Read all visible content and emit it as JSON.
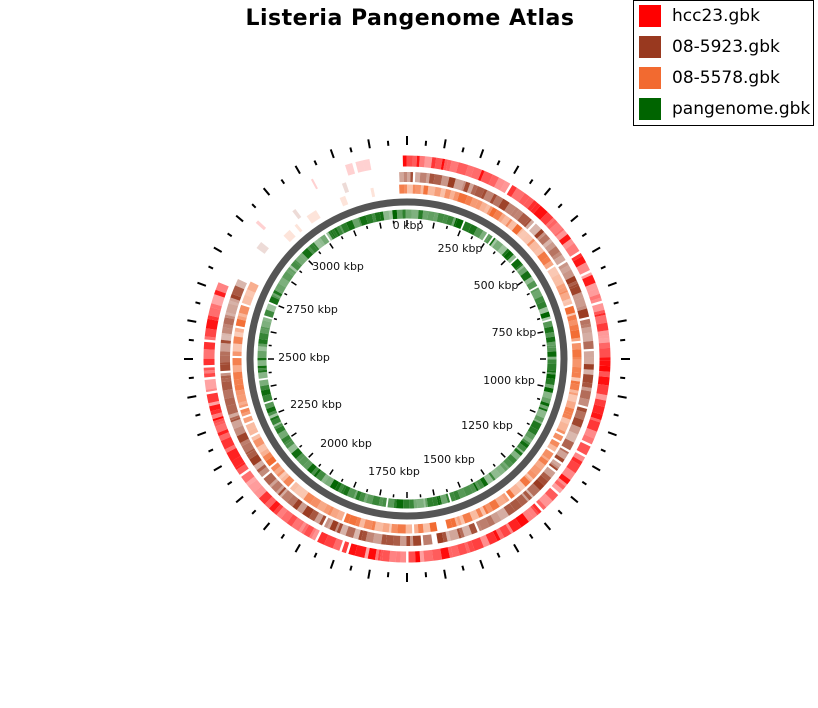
{
  "title": "Listeria Pangenome Atlas",
  "legend": [
    {
      "label": "hcc23.gbk",
      "color": "#ff0000"
    },
    {
      "label": "08-5923.gbk",
      "color": "#99391f"
    },
    {
      "label": "08-5578.gbk",
      "color": "#f26a30"
    },
    {
      "label": "pangenome.gbk",
      "color": "#006400"
    }
  ],
  "backbone_color": "#555555",
  "tick_labels": [
    "0 kbp",
    "250 kbp",
    "500 kbp",
    "750 kbp",
    "1000 kbp",
    "1250 kbp",
    "1500 kbp",
    "1750 kbp",
    "2000 kbp",
    "2250 kbp",
    "2500 kbp",
    "2750 kbp",
    "3000 kbp"
  ]
}
